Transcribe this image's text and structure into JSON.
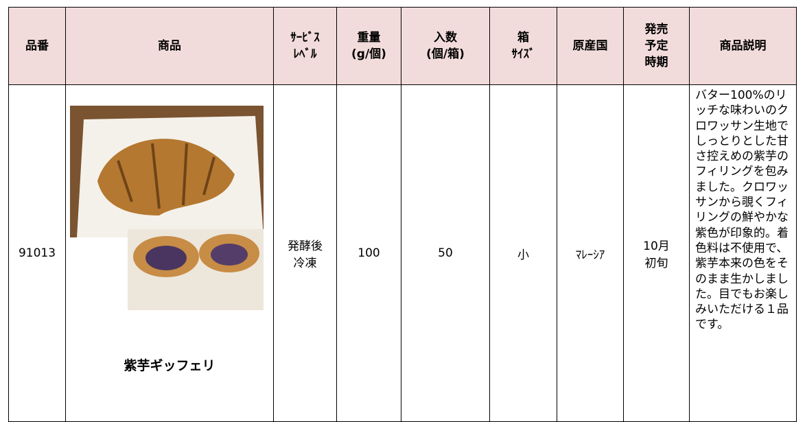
{
  "table": {
    "header": [
      "品番",
      "商品",
      "ｻｰﾋﾞｽ\nﾚﾍﾞﾙ",
      "重量\n(g/個)",
      "入数\n(個/箱)",
      "箱\nｻｲｽﾞ",
      "原産国",
      "発売\n予定\n時期",
      "商品説明"
    ],
    "rows": [
      {
        "code": "91013",
        "product_name": "紫芋ギッフェリ",
        "service_level": "発酵後\n冷凍",
        "weight": "100",
        "quantity": "50",
        "box_size": "小",
        "origin": "ﾏﾚｰｼｱ",
        "release": "10月\n初旬",
        "description": "バター100%のリッチな味わいのクロワッサン生地でしっとりとした甘さ控えめの紫芋のフィリングを包みました。クロワッサンから覗くフィリングの鮮やかな紫色が印象的。着色料は不使用で、紫芋本来の色をそのまま生かしました。目でもお楽しみいただける１品です。"
      }
    ]
  }
}
